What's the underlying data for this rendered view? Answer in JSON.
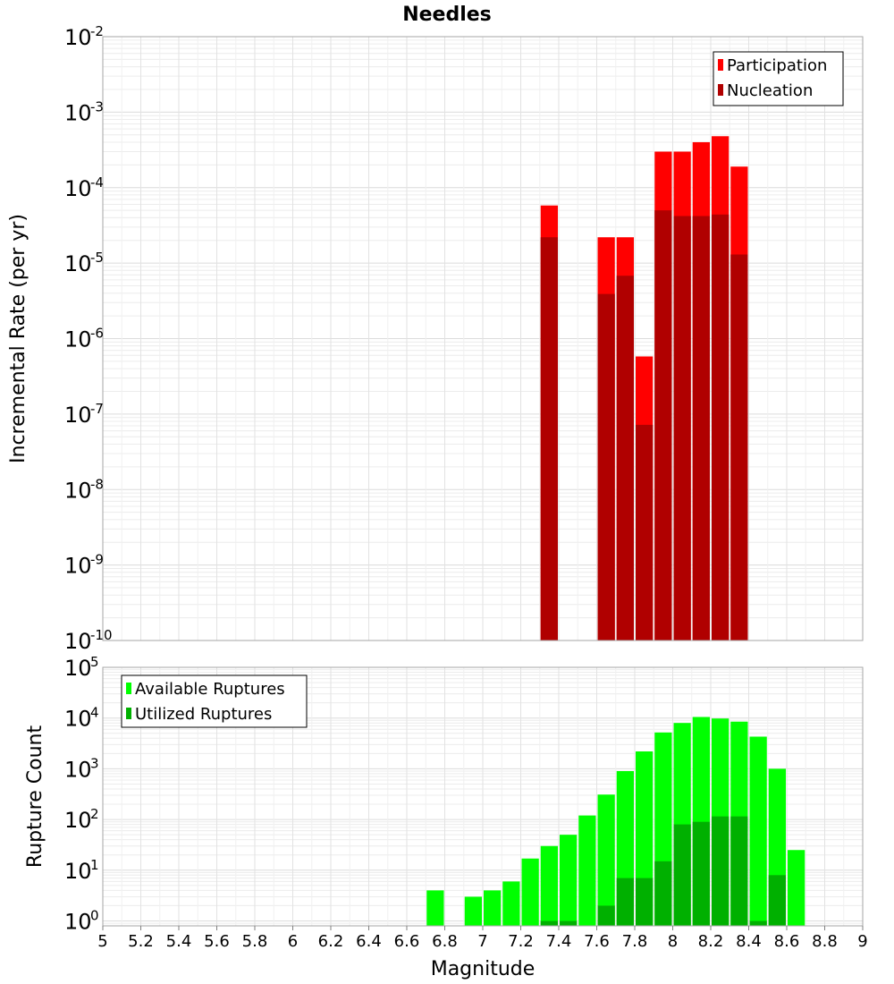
{
  "chart_data": [
    {
      "type": "bar",
      "title": "Needles",
      "xlabel": "",
      "ylabel": "Incremental Rate (per yr)",
      "y_scale": "log",
      "ylim": [
        1e-10,
        0.01
      ],
      "xlim": [
        5,
        9
      ],
      "yticks": [
        {
          "base": "10",
          "exp": "-2"
        },
        {
          "base": "10",
          "exp": "-3"
        },
        {
          "base": "10",
          "exp": "-4"
        },
        {
          "base": "10",
          "exp": "-5"
        },
        {
          "base": "10",
          "exp": "-6"
        },
        {
          "base": "10",
          "exp": "-7"
        },
        {
          "base": "10",
          "exp": "-8"
        },
        {
          "base": "10",
          "exp": "-9"
        },
        {
          "base": "10",
          "exp": "-10"
        }
      ],
      "grid": true,
      "legend_position": "top-right",
      "bin_width": 0.1,
      "series": [
        {
          "name": "Participation",
          "color": "#ff0000",
          "x": [
            7.35,
            7.65,
            7.75,
            7.85,
            7.95,
            8.05,
            8.15,
            8.25,
            8.35
          ],
          "values": [
            5.8e-05,
            2.2e-05,
            2.2e-05,
            5.8e-07,
            0.0003,
            0.0003,
            0.0004,
            0.00048,
            0.00019
          ]
        },
        {
          "name": "Nucleation",
          "color": "#b00000",
          "x": [
            7.35,
            7.65,
            7.75,
            7.85,
            7.95,
            8.05,
            8.15,
            8.25,
            8.35
          ],
          "values": [
            2.2e-05,
            3.9e-06,
            6.8e-06,
            7.2e-08,
            5e-05,
            4.2e-05,
            4.2e-05,
            4.4e-05,
            1.3e-05
          ]
        }
      ]
    },
    {
      "type": "bar",
      "title": "",
      "xlabel": "Magnitude",
      "ylabel": "Rupture Count",
      "y_scale": "log",
      "ylim": [
        0.8,
        100000.0
      ],
      "xlim": [
        5,
        9
      ],
      "yticks": [
        {
          "base": "10",
          "exp": "5"
        },
        {
          "base": "10",
          "exp": "4"
        },
        {
          "base": "10",
          "exp": "3"
        },
        {
          "base": "10",
          "exp": "2"
        },
        {
          "base": "10",
          "exp": "1"
        },
        {
          "base": "10",
          "exp": "0"
        }
      ],
      "xticks": [
        "5",
        "5.2",
        "5.4",
        "5.6",
        "5.8",
        "6",
        "6.2",
        "6.4",
        "6.6",
        "6.8",
        "7",
        "7.2",
        "7.4",
        "7.6",
        "7.8",
        "8",
        "8.2",
        "8.4",
        "8.6",
        "8.8",
        "9"
      ],
      "grid": true,
      "legend_position": "top-left",
      "bin_width": 0.1,
      "series": [
        {
          "name": "Available Ruptures",
          "color": "#00ff00",
          "x": [
            6.75,
            6.95,
            7.05,
            7.15,
            7.25,
            7.35,
            7.45,
            7.55,
            7.65,
            7.75,
            7.85,
            7.95,
            8.05,
            8.15,
            8.25,
            8.35,
            8.45,
            8.55,
            8.65
          ],
          "values": [
            4,
            3,
            4,
            6,
            17,
            30,
            50,
            120,
            310,
            900,
            2200,
            5200,
            8000,
            10500,
            9800,
            8500,
            4300,
            1000,
            25
          ]
        },
        {
          "name": "Utilized Ruptures",
          "color": "#00b000",
          "x": [
            7.35,
            7.45,
            7.65,
            7.75,
            7.85,
            7.95,
            8.05,
            8.15,
            8.25,
            8.35,
            8.45,
            8.55
          ],
          "values": [
            1,
            1,
            2,
            7,
            7,
            15,
            80,
            90,
            115,
            115,
            1,
            8
          ]
        }
      ]
    }
  ]
}
